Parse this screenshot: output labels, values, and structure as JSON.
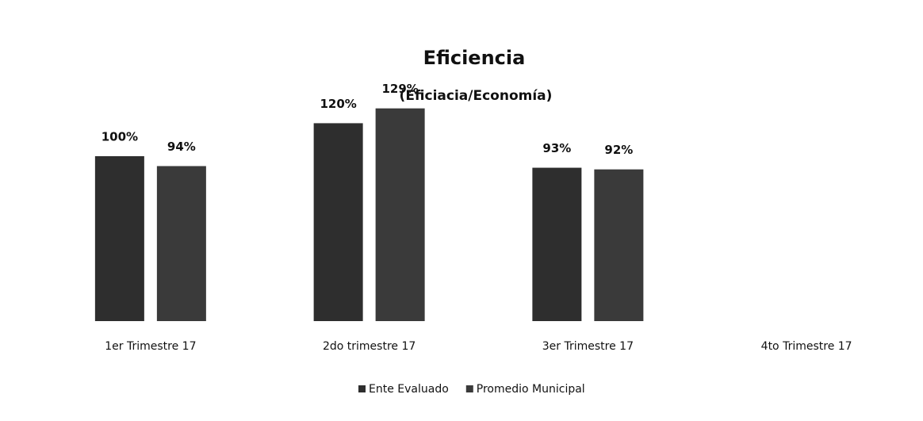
{
  "chart_data": {
    "type": "bar",
    "title": "Eficiencia",
    "subtitle": "(Eficiacia/Economía)",
    "categories": [
      "1er Trimestre 17",
      "2do trimestre 17",
      "3er Trimestre 17",
      "4to Trimestre 17"
    ],
    "series": [
      {
        "name": "Ente Evaluado",
        "color": "#2e2e2e",
        "values": [
          100,
          120,
          93,
          null
        ],
        "value_labels": [
          "100%",
          "120%",
          "93%",
          null
        ]
      },
      {
        "name": "Promedio Municipal",
        "color": "#3a3a3a",
        "values": [
          94,
          129,
          92,
          null
        ],
        "value_labels": [
          "94%",
          "129%",
          "92%",
          null
        ]
      }
    ],
    "ylim": [
      0,
      150
    ]
  }
}
